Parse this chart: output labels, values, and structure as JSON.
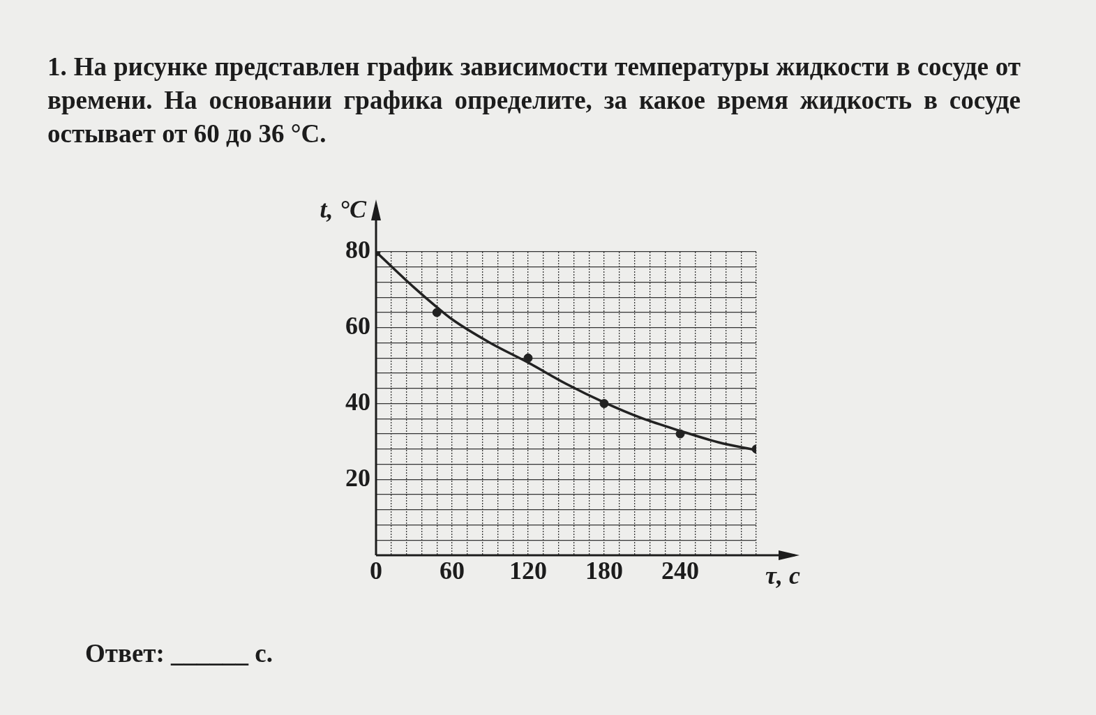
{
  "chart_data": {
    "type": "scatter",
    "title": "1. На рисунке представлен график зависимости температуры жидкости в сосуде от времени. На основании графика определите, за какое время жидкость в сосуде остывает от 60 до 36 °C.",
    "xlabel": "τ, с",
    "ylabel": "t, °C",
    "annotations": [
      "Ответ: ______ с."
    ],
    "xlim": [
      0,
      300
    ],
    "ylim": [
      0,
      80
    ],
    "xticks": [
      0,
      {
        "value": 12,
        "label": null
      },
      {
        "value": 24,
        "label": null
      },
      {
        "value": 36,
        "label": null
      },
      {
        "value": 48,
        "label": null
      },
      60,
      {
        "value": 72,
        "label": null
      },
      {
        "value": 84,
        "label": null
      },
      {
        "value": 96,
        "label": null
      },
      {
        "value": 108,
        "label": null
      },
      120,
      {
        "value": 132,
        "label": null
      },
      {
        "value": 144,
        "label": null
      },
      {
        "value": 156,
        "label": null
      },
      {
        "value": 168,
        "label": null
      },
      180,
      {
        "value": 192,
        "label": null
      },
      {
        "value": 204,
        "label": null
      },
      {
        "value": 216,
        "label": null
      },
      {
        "value": 228,
        "label": null
      },
      240,
      {
        "value": 252,
        "label": null
      },
      {
        "value": 264,
        "label": null
      },
      {
        "value": 276,
        "label": null
      },
      {
        "value": 288,
        "label": null
      },
      {
        "value": 300,
        "label": null
      }
    ],
    "yticks": [
      {
        "value": 0,
        "label": null
      },
      {
        "value": 4,
        "label": null
      },
      {
        "value": 8,
        "label": null
      },
      {
        "value": 12,
        "label": null
      },
      {
        "value": 16,
        "label": null
      },
      20,
      {
        "value": 24,
        "label": null
      },
      {
        "value": 28,
        "label": null
      },
      {
        "value": 32,
        "label": null
      },
      {
        "value": 36,
        "label": null
      },
      40,
      {
        "value": 44,
        "label": null
      },
      {
        "value": 48,
        "label": null
      },
      {
        "value": 52,
        "label": null
      },
      {
        "value": 56,
        "label": null
      },
      60,
      {
        "value": 64,
        "label": null
      },
      {
        "value": 68,
        "label": null
      },
      {
        "value": 72,
        "label": null
      },
      {
        "value": 76,
        "label": null
      },
      80
    ],
    "grid": true,
    "series": [
      {
        "type": "scatter",
        "color": "#222222",
        "marker": "circle",
        "x": [
          0,
          48,
          120,
          180,
          240,
          300
        ],
        "values": [
          80,
          64,
          52,
          40,
          32,
          28
        ]
      },
      {
        "type": "line",
        "color": "#222222",
        "line_style": "solid",
        "x": [
          0,
          30,
          48,
          60,
          90,
          120,
          150,
          180,
          210,
          240,
          270,
          300
        ],
        "values": [
          80,
          70.6,
          65.4,
          62.2,
          56,
          50.8,
          45.2,
          40.3,
          36.1,
          32.8,
          29.8,
          27.7
        ]
      }
    ]
  }
}
